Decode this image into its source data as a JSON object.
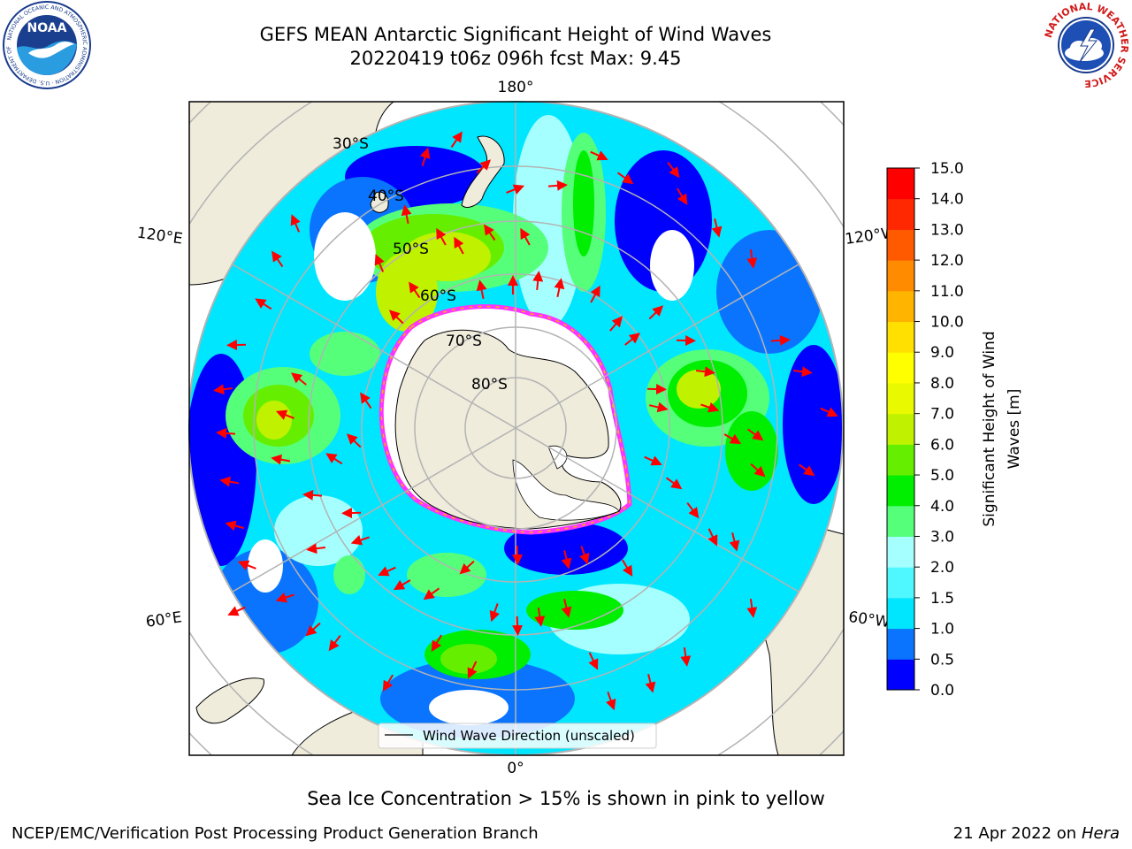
{
  "title": {
    "line1": "GEFS MEAN Antarctic Significant Height of Wind Waves",
    "line2": "20220419 t06z 096h fcst   Max: 9.45"
  },
  "map": {
    "projection": "south-polar-stereographic",
    "longitude_labels": {
      "top": "180°",
      "bottom": "0°",
      "upper_left": "120°E",
      "upper_right": "120°W",
      "lower_left": "60°E",
      "lower_right": "60°W"
    },
    "latitude_labels": [
      "30°S",
      "40°S",
      "50°S",
      "60°S",
      "70°S",
      "80°S"
    ],
    "legend_label": "Wind Wave Direction (unscaled)",
    "land_color": "#efecdc",
    "ice_edge_colors": [
      "#ff33ff",
      "#ffb300",
      "#ffff66"
    ],
    "arrow_color": "#ff0000"
  },
  "colorbar": {
    "label_line1": "Significant Height of Wind",
    "label_line2": "Waves [m]",
    "ticks": [
      "0.0",
      "0.5",
      "1.0",
      "1.5",
      "2.0",
      "3.0",
      "4.0",
      "5.0",
      "6.0",
      "7.0",
      "8.0",
      "9.0",
      "10.0",
      "11.0",
      "12.0",
      "13.0",
      "14.0",
      "15.0"
    ],
    "colors": [
      "#0000ff",
      "#0a74ff",
      "#00e6ff",
      "#4ff7ff",
      "#a5ffff",
      "#55ff7a",
      "#00ee00",
      "#66ee00",
      "#c0f200",
      "#e9f900",
      "#ffff00",
      "#ffe000",
      "#ffb400",
      "#ff8c00",
      "#ff5a00",
      "#ff2800",
      "#ff0000"
    ]
  },
  "caption": "Sea Ice Concentration > 15% is shown in pink to yellow",
  "footer": {
    "credit": "NCEP/EMC/Verification Post Processing Product Generation Branch",
    "date": "21 Apr 2022 on",
    "machine": "Hera"
  },
  "logos": {
    "noaa": "NOAA",
    "noaa_ring": "NATIONAL OCEANIC AND ATMOSPHERIC ADMINISTRATION · U.S. DEPARTMENT OF COMMERCE",
    "nws_ring": "NATIONAL WEATHER SERVICE"
  }
}
